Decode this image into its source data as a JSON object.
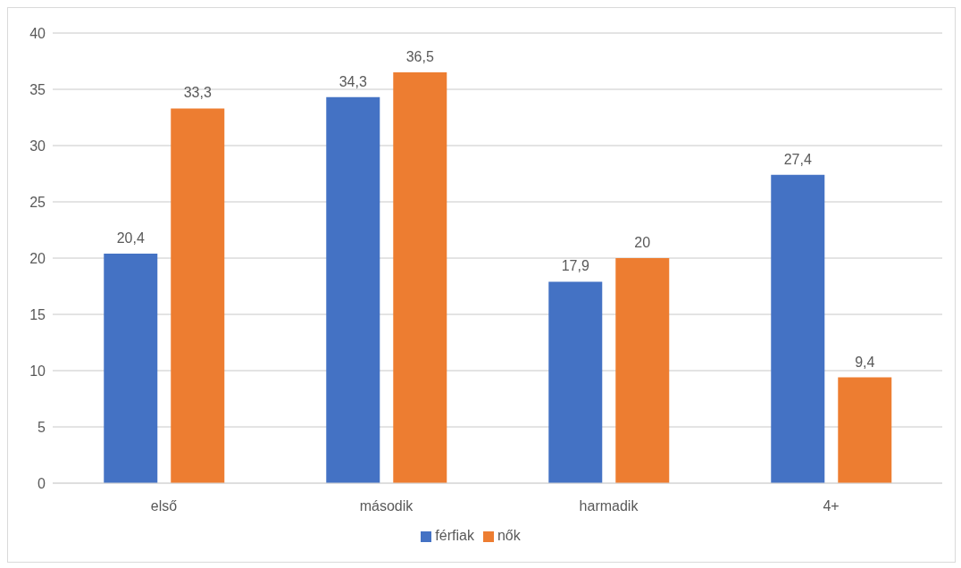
{
  "chart_data": {
    "type": "bar",
    "categories": [
      "első",
      "második",
      "harmadik",
      "4+"
    ],
    "series": [
      {
        "name": "férfiak",
        "color": "#4472c4",
        "values": [
          20.4,
          34.3,
          17.9,
          27.4
        ],
        "value_labels": [
          "20,4",
          "34,3",
          "17,9",
          "27,4"
        ]
      },
      {
        "name": "nők",
        "color": "#ed7d31",
        "values": [
          33.3,
          36.5,
          20,
          9.4
        ],
        "value_labels": [
          "33,3",
          "36,5",
          "20",
          "9,4"
        ]
      }
    ],
    "ylim": [
      0,
      40
    ],
    "yticks": [
      0,
      5,
      10,
      15,
      20,
      25,
      30,
      35,
      40
    ],
    "grid": "y",
    "legend": "bottom"
  }
}
